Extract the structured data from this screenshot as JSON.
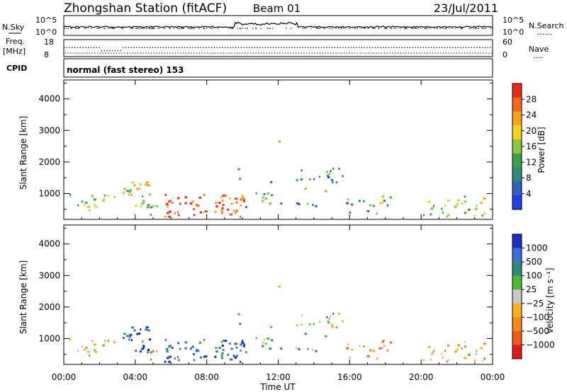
{
  "header": {
    "title": "Zhongshan Station (fitACF)",
    "beam": "Beam 01",
    "date": "23/Jul/2011"
  },
  "top_panels": {
    "sky_label": "N.Sky",
    "sky_tick_high": "10^5",
    "sky_tick_low": "10^0",
    "search_label": "N.Search",
    "search_legend": "......",
    "search_tick_high": "10^5",
    "search_tick_low": "10^0",
    "freq_label_1": "Freq.",
    "freq_label_2": "[MHz]",
    "freq_tick_high": "18",
    "freq_tick_low": "8",
    "nave_label": "Nave",
    "nave_legend": "....",
    "nave_tick_high": "60",
    "nave_tick_low": "0",
    "cpid_label": "CPID",
    "cpid_text": "normal (fast stereo) 153"
  },
  "colors": {
    "power": [
      "#1f3fe0",
      "#2d5fc0",
      "#2f8a7a",
      "#3aa04a",
      "#8cc63f",
      "#f2d41f",
      "#f7a21b",
      "#f06a1a",
      "#e82a1a"
    ],
    "velocity": [
      "#1a2fbf",
      "#3a6fd8",
      "#2f8a7a",
      "#4dbb3a",
      "#c8c8c8",
      "#f5b21a",
      "#f58a1a",
      "#ee5a18",
      "#e01a1a"
    ]
  },
  "chart_data": [
    {
      "type": "heatmap",
      "title": "Zhongshan Station (fitACF) Beam 01",
      "xlabel": "Time UT",
      "ylabel": "Slant Range [km]",
      "x_ticks": [
        "00:00",
        "04:00",
        "08:00",
        "12:00",
        "16:00",
        "20:00",
        "00:00"
      ],
      "x_range_hours": [
        0,
        24
      ],
      "ylim": [
        180,
        4600
      ],
      "y_ticks": [
        1000,
        2000,
        3000,
        4000
      ],
      "colorbar_label": "Power [dB]",
      "colorbar_ticks": [
        "4",
        "8",
        "12",
        "16",
        "20",
        "24",
        "28"
      ],
      "colorbar_range": [
        0,
        30
      ]
    },
    {
      "type": "heatmap",
      "title": "Zhongshan Station (fitACF) Beam 01",
      "xlabel": "Time UT",
      "ylabel": "Slant Range [km]",
      "x_ticks": [
        "00:00",
        "04:00",
        "08:00",
        "12:00",
        "16:00",
        "20:00",
        "00:00"
      ],
      "x_range_hours": [
        0,
        24
      ],
      "ylim": [
        180,
        4600
      ],
      "y_ticks": [
        1000,
        2000,
        3000,
        4000
      ],
      "colorbar_label": "Velocity [m s⁻¹]",
      "colorbar_ticks": [
        "1000",
        "500",
        "100",
        "25",
        "−25",
        "−100",
        "−500",
        "−1000"
      ],
      "colorbar_range": [
        -1000,
        1000
      ]
    }
  ]
}
